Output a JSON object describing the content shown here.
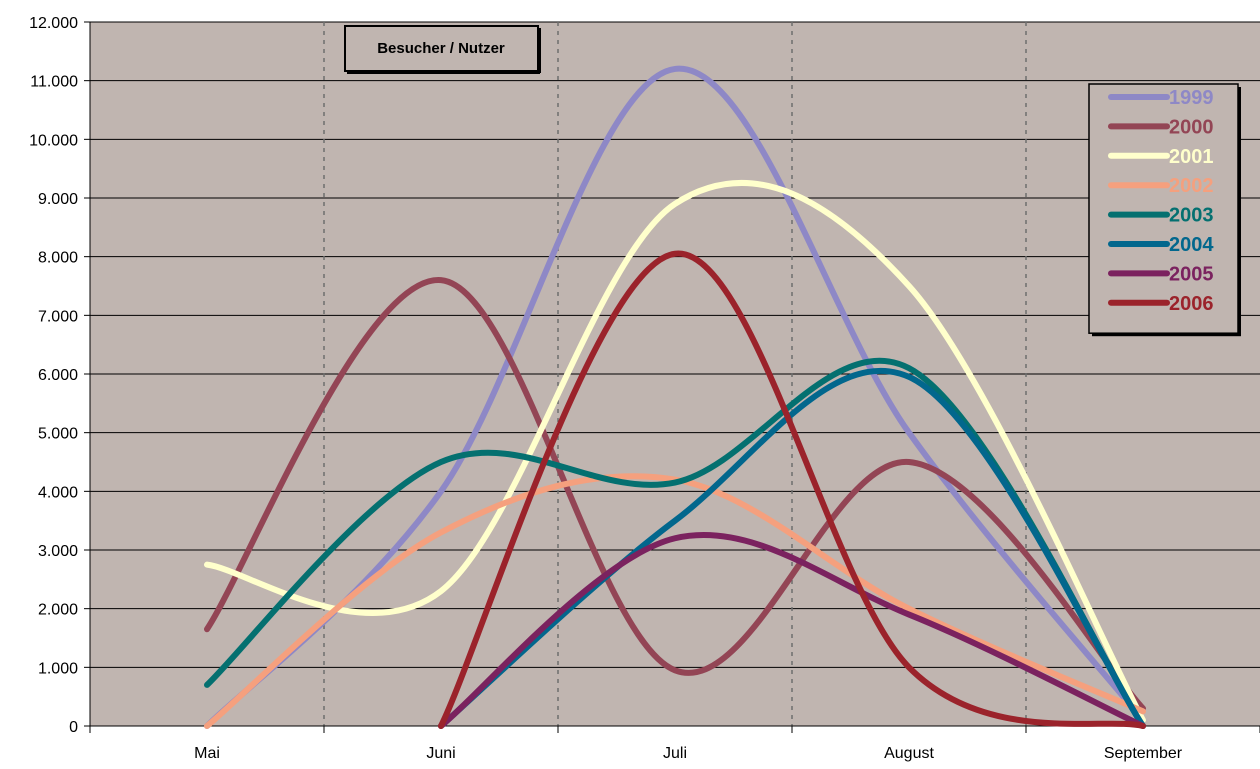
{
  "chart_data": {
    "type": "line",
    "title": "Besucher / Nutzer",
    "xlabel": "",
    "ylabel": "",
    "categories": [
      "Mai",
      "Juni",
      "Juli",
      "August",
      "September"
    ],
    "ylim": [
      0,
      12000
    ],
    "yticks": [
      0,
      1000,
      2000,
      3000,
      4000,
      5000,
      6000,
      7000,
      8000,
      9000,
      10000,
      11000,
      12000
    ],
    "ytick_labels": [
      "0",
      "1.000",
      "2.000",
      "3.000",
      "4.000",
      "5.000",
      "6.000",
      "7.000",
      "8.000",
      "9.000",
      "10.000",
      "11.000",
      "12.000"
    ],
    "grid": true,
    "smoothed": true,
    "legend_position": "top-right",
    "plot_background": "#c0b5b0",
    "series": [
      {
        "name": "1999",
        "color": "#8e88c6",
        "values": [
          0,
          4000,
          11200,
          5000,
          100
        ]
      },
      {
        "name": "2000",
        "color": "#934555",
        "values": [
          1650,
          7600,
          950,
          4500,
          300
        ]
      },
      {
        "name": "2001",
        "color": "#ffffcc",
        "values": [
          2750,
          2300,
          8900,
          7500,
          100
        ]
      },
      {
        "name": "2002",
        "color": "#f5a07e",
        "values": [
          0,
          3300,
          4200,
          2000,
          250
        ]
      },
      {
        "name": "2003",
        "color": "#047070",
        "values": [
          700,
          4500,
          4150,
          6100,
          0
        ]
      },
      {
        "name": "2004",
        "color": "#02678d",
        "values": [
          0,
          0,
          3500,
          5950,
          0
        ]
      },
      {
        "name": "2005",
        "color": "#7b225f",
        "values": [
          0,
          0,
          3200,
          1900,
          0
        ]
      },
      {
        "name": "2006",
        "color": "#9b232b",
        "values": [
          0,
          0,
          8050,
          1000,
          0
        ]
      }
    ]
  }
}
